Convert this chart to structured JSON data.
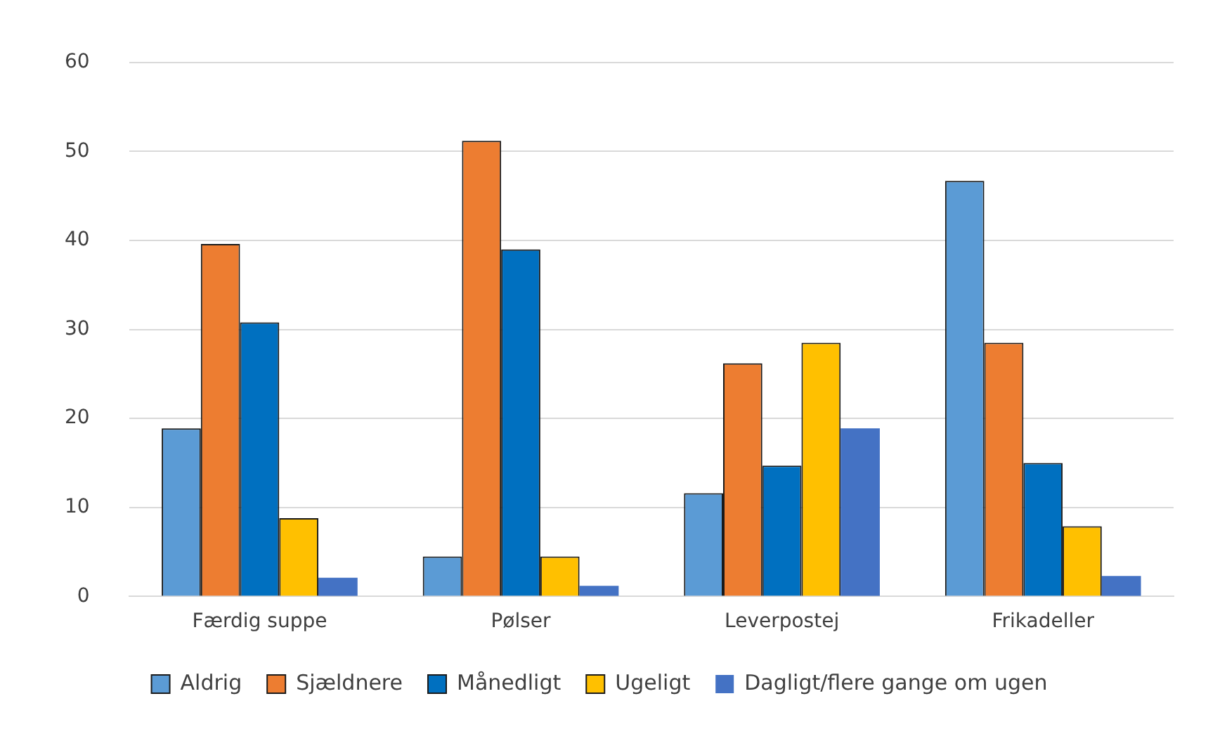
{
  "chart_data": {
    "type": "bar",
    "categories": [
      "Færdig suppe",
      "Pølser",
      "Leverpostej",
      "Frikadeller"
    ],
    "series": [
      {
        "name": "Aldrig",
        "color": "#5b9bd5",
        "values": [
          18.9,
          4.5,
          11.6,
          46.7
        ]
      },
      {
        "name": "Sjældnere",
        "color": "#ed7d31",
        "values": [
          39.6,
          51.2,
          26.2,
          28.5
        ]
      },
      {
        "name": "Månedligt",
        "color": "#0070c0",
        "values": [
          30.8,
          39.0,
          14.7,
          15.0
        ]
      },
      {
        "name": "Ugeligt",
        "color": "#ffc000",
        "values": [
          8.8,
          4.5,
          28.5,
          7.9
        ]
      },
      {
        "name": "Dagligt/flere gange om ugen",
        "color": "#4472c4",
        "values": [
          2.1,
          1.2,
          18.9,
          2.3
        ]
      }
    ],
    "ylim": [
      0,
      60
    ],
    "yticks": [
      0,
      10,
      20,
      30,
      40,
      50,
      60
    ],
    "grid": "y",
    "legend": "bottom"
  }
}
